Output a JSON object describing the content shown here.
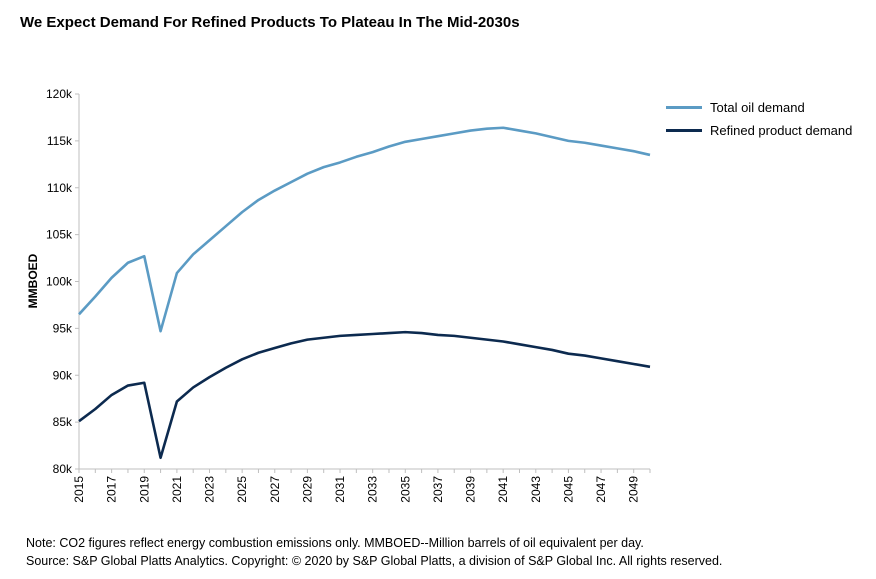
{
  "title": "We Expect Demand For Refined Products To Plateau In The Mid-2030s",
  "footer": {
    "note": "Note: CO2 figures reflect energy combustion emissions only. MMBOED--Million barrels of oil equivalent per day.",
    "source": "Source: S&P Global Platts Analytics. Copyright: © 2020 by S&P Global Platts, a division of S&P Global Inc. All rights reserved."
  },
  "chart_data": {
    "type": "line",
    "title": "We Expect Demand For Refined Products To Plateau In The Mid-2030s",
    "xlabel": "",
    "ylabel": "MMBOED",
    "xlim": [
      2015,
      2050
    ],
    "ylim": [
      80,
      120
    ],
    "y_tick_labels": [
      "80k",
      "85k",
      "90k",
      "95k",
      "100k",
      "105k",
      "110k",
      "115k",
      "120k"
    ],
    "y_ticks": [
      80,
      85,
      90,
      95,
      100,
      105,
      110,
      115,
      120
    ],
    "x_tick_labels": [
      "2015",
      "2017",
      "2019",
      "2021",
      "2023",
      "2025",
      "2027",
      "2029",
      "2031",
      "2033",
      "2035",
      "2037",
      "2039",
      "2041",
      "2043",
      "2045",
      "2047",
      "2049"
    ],
    "x_ticks": [
      2015,
      2017,
      2019,
      2021,
      2023,
      2025,
      2027,
      2029,
      2031,
      2033,
      2035,
      2037,
      2039,
      2041,
      2043,
      2045,
      2047,
      2049
    ],
    "grid": false,
    "legend_position": "top-right",
    "x": [
      2015,
      2016,
      2017,
      2018,
      2019,
      2020,
      2021,
      2022,
      2023,
      2024,
      2025,
      2026,
      2027,
      2028,
      2029,
      2030,
      2031,
      2032,
      2033,
      2034,
      2035,
      2036,
      2037,
      2038,
      2039,
      2040,
      2041,
      2042,
      2043,
      2044,
      2045,
      2046,
      2047,
      2048,
      2049,
      2050
    ],
    "series": [
      {
        "name": "Total oil demand",
        "color": "#5B9BC4",
        "values": [
          96.5,
          98.4,
          100.4,
          102.0,
          102.7,
          94.7,
          100.9,
          102.9,
          104.4,
          105.9,
          107.4,
          108.7,
          109.7,
          110.6,
          111.5,
          112.2,
          112.7,
          113.3,
          113.8,
          114.4,
          114.9,
          115.2,
          115.5,
          115.8,
          116.1,
          116.3,
          116.4,
          116.1,
          115.8,
          115.4,
          115.0,
          114.8,
          114.5,
          114.2,
          113.9,
          113.5
        ]
      },
      {
        "name": "Refined product demand",
        "color": "#0C2A4F",
        "values": [
          85.1,
          86.4,
          87.9,
          88.9,
          89.2,
          81.2,
          87.2,
          88.7,
          89.8,
          90.8,
          91.7,
          92.4,
          92.9,
          93.4,
          93.8,
          94.0,
          94.2,
          94.3,
          94.4,
          94.5,
          94.6,
          94.5,
          94.3,
          94.2,
          94.0,
          93.8,
          93.6,
          93.3,
          93.0,
          92.7,
          92.3,
          92.1,
          91.8,
          91.5,
          91.2,
          90.9
        ]
      }
    ]
  }
}
